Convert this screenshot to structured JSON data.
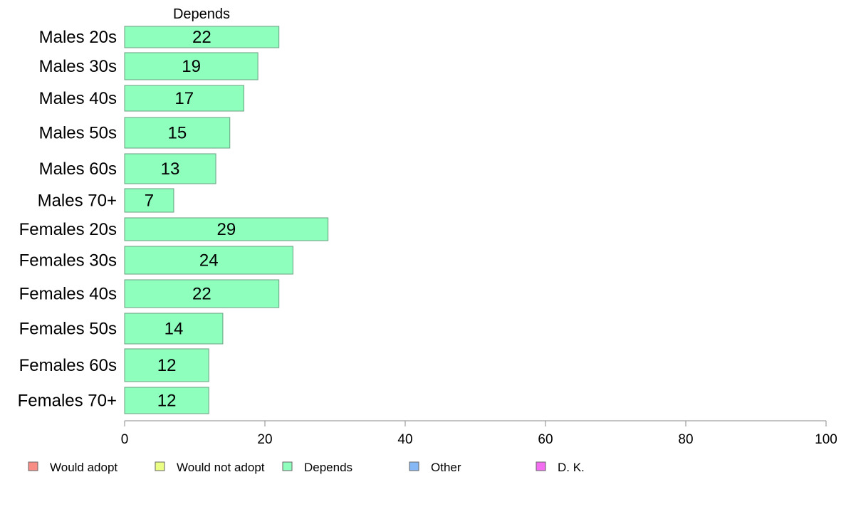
{
  "chart_data": {
    "type": "bar",
    "orientation": "horizontal",
    "title": "",
    "series_title": "Depends",
    "categories": [
      "Males 20s",
      "Males 30s",
      "Males 40s",
      "Males 50s",
      "Males 60s",
      "Males 70+",
      "Females 20s",
      "Females 30s",
      "Females 40s",
      "Females 50s",
      "Females 60s",
      "Females 70+"
    ],
    "series": [
      {
        "name": "Depends",
        "color": "#8effbd",
        "values": [
          22,
          19,
          17,
          15,
          13,
          7,
          29,
          24,
          22,
          14,
          12,
          12
        ]
      }
    ],
    "xlim": [
      0,
      100
    ],
    "xticks": [
      0,
      20,
      40,
      60,
      80,
      100
    ],
    "grid": false,
    "legend_position": "bottom",
    "legend": [
      {
        "name": "Would adopt",
        "color": "#f88d86"
      },
      {
        "name": "Would not adopt",
        "color": "#eaff84"
      },
      {
        "name": "Depends",
        "color": "#8effbd"
      },
      {
        "name": "Other",
        "color": "#86b8f6"
      },
      {
        "name": "D. K.",
        "color": "#f36ef1"
      }
    ]
  }
}
